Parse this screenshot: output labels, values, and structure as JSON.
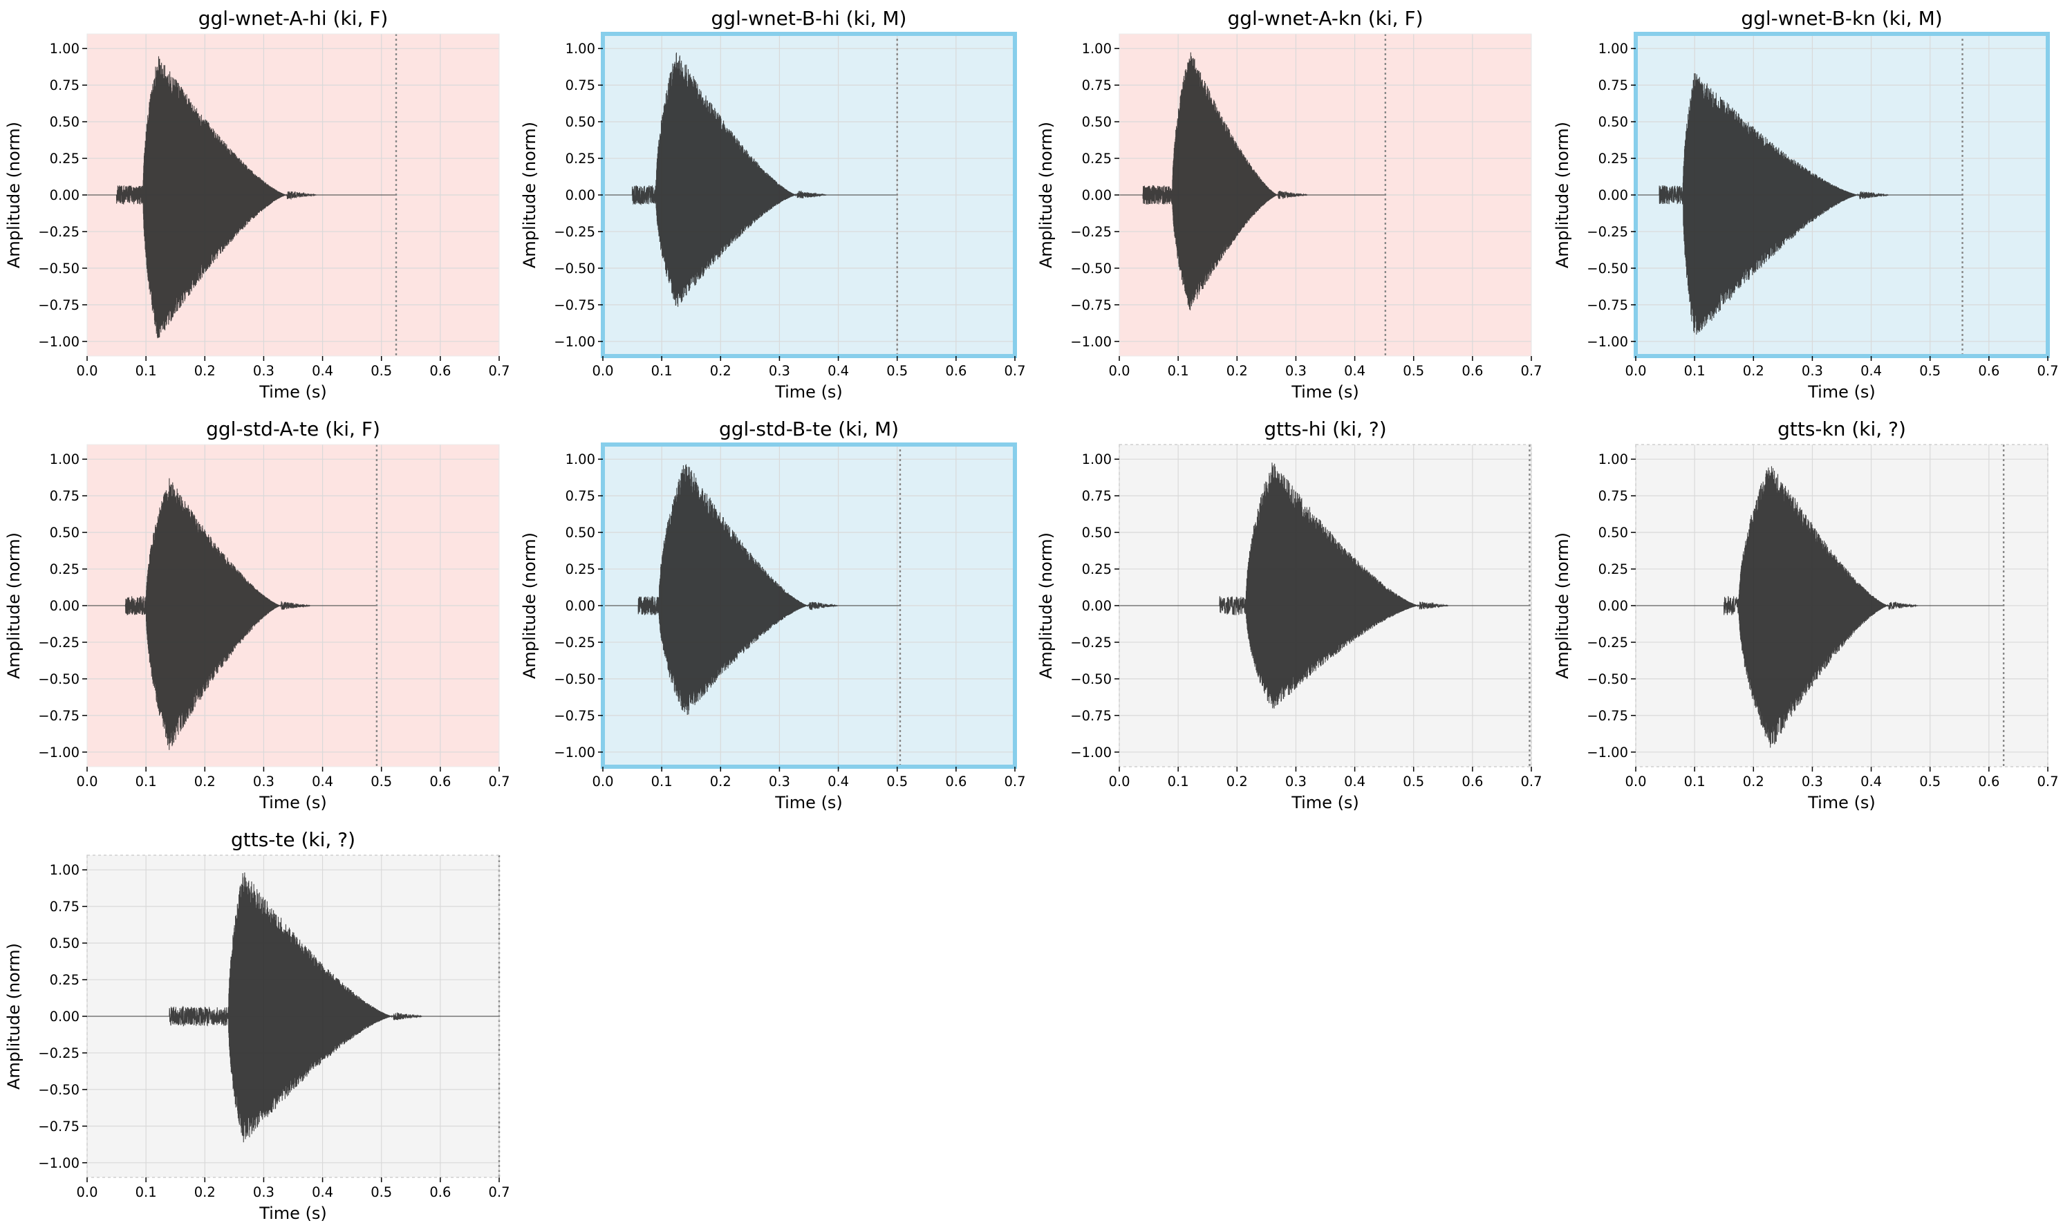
{
  "figure": {
    "xlabel": "Time (s)",
    "ylabel": "Amplitude (norm)",
    "x_ticks": [
      0.0,
      0.1,
      0.2,
      0.3,
      0.4,
      0.5,
      0.6,
      0.7
    ],
    "y_ticks": [
      -1.0,
      -0.75,
      -0.5,
      -0.25,
      0.0,
      0.25,
      0.5,
      0.75,
      1.0
    ],
    "colors": {
      "female_bg": "#fde4e2",
      "male_bg": "#dff0f7",
      "unknown_bg": "#f4f4f4",
      "male_border": "#87ceeb",
      "waveform": "#2b2b2b",
      "end_marker": "#888888"
    }
  },
  "chart_data": [
    {
      "type": "line",
      "title": "ggl-wnet-A-hi (ki, F)",
      "gender": "F",
      "xlabel": "Time (s)",
      "ylabel": "Amplitude (norm)",
      "xlim": [
        0,
        0.7
      ],
      "ylim": [
        -1.1,
        1.1
      ],
      "grid": true,
      "duration_s": 0.525,
      "voiced_start_s": 0.095,
      "voiced_end_s": 0.34,
      "noise_start_s": 0.05,
      "peak_s": 0.12,
      "peak_pos": 0.97,
      "peak_neg": -1.0,
      "secondary_peak": 0.0
    },
    {
      "type": "line",
      "title": "ggl-wnet-B-hi (ki, M)",
      "gender": "M",
      "xlabel": "Time (s)",
      "ylabel": "Amplitude (norm)",
      "xlim": [
        0,
        0.7
      ],
      "ylim": [
        -1.1,
        1.1
      ],
      "grid": true,
      "duration_s": 0.5,
      "voiced_start_s": 0.09,
      "voiced_end_s": 0.33,
      "noise_start_s": 0.05,
      "peak_s": 0.125,
      "peak_pos": 1.0,
      "peak_neg": -0.78,
      "secondary_peak": 0.3
    },
    {
      "type": "line",
      "title": "ggl-wnet-A-kn (ki, F)",
      "gender": "F",
      "xlabel": "Time (s)",
      "ylabel": "Amplitude (norm)",
      "xlim": [
        0,
        0.7
      ],
      "ylim": [
        -1.1,
        1.1
      ],
      "grid": true,
      "duration_s": 0.452,
      "voiced_start_s": 0.09,
      "voiced_end_s": 0.27,
      "noise_start_s": 0.04,
      "peak_s": 0.12,
      "peak_pos": 1.0,
      "peak_neg": -0.8,
      "secondary_peak": 0.0
    },
    {
      "type": "line",
      "title": "ggl-wnet-B-kn (ki, M)",
      "gender": "M",
      "xlabel": "Time (s)",
      "ylabel": "Amplitude (norm)",
      "xlim": [
        0,
        0.7
      ],
      "ylim": [
        -1.1,
        1.1
      ],
      "grid": true,
      "duration_s": 0.555,
      "voiced_start_s": 0.08,
      "voiced_end_s": 0.38,
      "noise_start_s": 0.04,
      "peak_s": 0.1,
      "peak_pos": 0.85,
      "peak_neg": -1.0,
      "secondary_peak": 0.32
    },
    {
      "type": "line",
      "title": "ggl-std-A-te (ki, F)",
      "gender": "F",
      "xlabel": "Time (s)",
      "ylabel": "Amplitude (norm)",
      "xlim": [
        0,
        0.7
      ],
      "ylim": [
        -1.1,
        1.1
      ],
      "grid": true,
      "duration_s": 0.492,
      "voiced_start_s": 0.1,
      "voiced_end_s": 0.33,
      "noise_start_s": 0.065,
      "peak_s": 0.14,
      "peak_pos": 0.88,
      "peak_neg": -1.0,
      "secondary_peak": 0.0
    },
    {
      "type": "line",
      "title": "ggl-std-B-te (ki, M)",
      "gender": "M",
      "xlabel": "Time (s)",
      "ylabel": "Amplitude (norm)",
      "xlim": [
        0,
        0.7
      ],
      "ylim": [
        -1.1,
        1.1
      ],
      "grid": true,
      "duration_s": 0.505,
      "voiced_start_s": 0.095,
      "voiced_end_s": 0.35,
      "noise_start_s": 0.06,
      "peak_s": 0.14,
      "peak_pos": 1.0,
      "peak_neg": -0.77,
      "secondary_peak": 0.16
    },
    {
      "type": "line",
      "title": "gtts-hi (ki, ?)",
      "gender": "?",
      "xlabel": "Time (s)",
      "ylabel": "Amplitude (norm)",
      "xlim": [
        0,
        0.7
      ],
      "ylim": [
        -1.1,
        1.1
      ],
      "grid": true,
      "duration_s": 0.697,
      "voiced_start_s": 0.215,
      "voiced_end_s": 0.51,
      "noise_start_s": 0.17,
      "peak_s": 0.26,
      "peak_pos": 1.0,
      "peak_neg": -0.72,
      "secondary_peak": 0.0
    },
    {
      "type": "line",
      "title": "gtts-kn (ki, ?)",
      "gender": "?",
      "xlabel": "Time (s)",
      "ylabel": "Amplitude (norm)",
      "xlim": [
        0,
        0.7
      ],
      "ylim": [
        -1.1,
        1.1
      ],
      "grid": true,
      "duration_s": 0.625,
      "voiced_start_s": 0.175,
      "voiced_end_s": 0.43,
      "noise_start_s": 0.15,
      "peak_s": 0.23,
      "peak_pos": 1.0,
      "peak_neg": -0.99,
      "secondary_peak": 0.0
    },
    {
      "type": "line",
      "title": "gtts-te (ki, ?)",
      "gender": "?",
      "xlabel": "Time (s)",
      "ylabel": "Amplitude (norm)",
      "xlim": [
        0,
        0.7
      ],
      "ylim": [
        -1.1,
        1.1
      ],
      "grid": true,
      "duration_s": 0.7,
      "voiced_start_s": 0.24,
      "voiced_end_s": 0.52,
      "noise_start_s": 0.14,
      "peak_s": 0.265,
      "peak_pos": 1.0,
      "peak_neg": -0.88,
      "secondary_peak": 0.0
    }
  ]
}
